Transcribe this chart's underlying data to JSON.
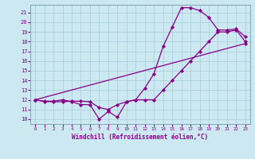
{
  "xlabel": "Windchill (Refroidissement éolien,°C)",
  "bg_color": "#cce8f0",
  "line_color": "#880088",
  "grid_color": "#a8ccd8",
  "spine_color": "#7799aa",
  "xlim": [
    -0.5,
    23.5
  ],
  "ylim": [
    9.5,
    21.8
  ],
  "yticks": [
    10,
    11,
    12,
    13,
    14,
    15,
    16,
    17,
    18,
    19,
    20,
    21
  ],
  "xticks": [
    0,
    1,
    2,
    3,
    4,
    5,
    6,
    7,
    8,
    9,
    10,
    11,
    12,
    13,
    14,
    15,
    16,
    17,
    18,
    19,
    20,
    21,
    22,
    23
  ],
  "line1_x": [
    0,
    1,
    2,
    3,
    4,
    5,
    6,
    7,
    8,
    9,
    10,
    11,
    12,
    13,
    14,
    15,
    16,
    17,
    18,
    19,
    20,
    21,
    22,
    23
  ],
  "line1_y": [
    12,
    11.85,
    11.85,
    12.0,
    11.8,
    11.5,
    11.5,
    10.0,
    10.8,
    10.2,
    11.8,
    12.0,
    13.2,
    14.7,
    17.5,
    19.5,
    21.5,
    21.5,
    21.2,
    20.5,
    19.2,
    19.2,
    19.3,
    18.5
  ],
  "line2_x": [
    0,
    1,
    2,
    3,
    4,
    5,
    6,
    7,
    8,
    9,
    10,
    11,
    12,
    13,
    14,
    15,
    16,
    17,
    18,
    19,
    20,
    21,
    22,
    23
  ],
  "line2_y": [
    12,
    11.8,
    11.8,
    11.8,
    11.85,
    11.85,
    11.8,
    11.2,
    11.0,
    11.5,
    11.8,
    12.0,
    12.0,
    12.0,
    13.0,
    14.0,
    15.0,
    16.0,
    17.0,
    18.0,
    19.0,
    19.0,
    19.2,
    18.0
  ],
  "line3_x": [
    0,
    23
  ],
  "line3_y": [
    12.0,
    17.8
  ],
  "marker": "D",
  "markersize": 2.2,
  "linewidth": 0.9
}
